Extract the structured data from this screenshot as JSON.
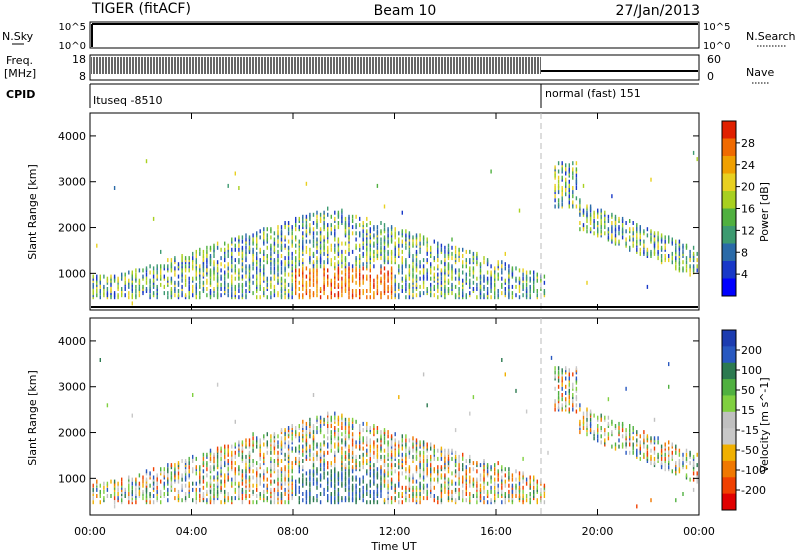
{
  "header": {
    "radar": "TIGER (fitACF)",
    "beam": "Beam 10",
    "date": "27/Jan/2013"
  },
  "strips": {
    "nsky_label": "N.Sky",
    "nsky_ticks": [
      "10^5",
      "10^0"
    ],
    "freq_label_1": "Freq.",
    "freq_label_2": "[MHz]",
    "freq_ticks": [
      "18",
      "8"
    ],
    "right_ticks_top": [
      "10^5",
      "10^0"
    ],
    "right_ticks_freq": [
      "60",
      "0"
    ],
    "nsearch_label": "N.Search",
    "nave_label": "Nave",
    "cpid_label": "CPID",
    "cpid_segments": [
      "Ituseq -8510",
      "normal (fast) 151"
    ]
  },
  "x_axis": {
    "label": "Time UT",
    "ticks": [
      "00:00",
      "04:00",
      "08:00",
      "12:00",
      "16:00",
      "20:00",
      "00:00"
    ]
  },
  "chart_data": [
    {
      "type": "heatmap",
      "name": "power",
      "ylabel": "Slant Range [km]",
      "yticks": [
        "1000",
        "2000",
        "3000",
        "4000"
      ],
      "ylim": [
        200,
        4500
      ],
      "xlim_hours": [
        0,
        24
      ],
      "colorbar_label": "Power [dB]",
      "colorbar_ticks": [
        "28",
        "24",
        "20",
        "16",
        "12",
        "8",
        "4"
      ],
      "colorbar_colors": [
        "#e02000",
        "#f06a00",
        "#f0a000",
        "#e8d020",
        "#a8d020",
        "#50b040",
        "#3c9a70",
        "#2a6aa8",
        "#1838c8",
        "#0000ff"
      ],
      "mode_change_hour": 18.0
    },
    {
      "type": "heatmap",
      "name": "velocity",
      "ylabel": "Slant Range [km]",
      "yticks": [
        "1000",
        "2000",
        "3000",
        "4000"
      ],
      "ylim": [
        200,
        4500
      ],
      "xlim_hours": [
        0,
        24
      ],
      "colorbar_label": "Velocity [m s^-1]",
      "colorbar_ticks": [
        "200",
        "100",
        "50",
        "15",
        "-15",
        "-50",
        "-100",
        "-200"
      ],
      "colorbar_colors": [
        "#1c3cb0",
        "#2858c0",
        "#2c7a50",
        "#50b040",
        "#80d040",
        "#c0c0c0",
        "#c8c8c8",
        "#f0b000",
        "#f07800",
        "#f04000",
        "#e00000"
      ],
      "mode_change_hour": 18.0
    }
  ]
}
